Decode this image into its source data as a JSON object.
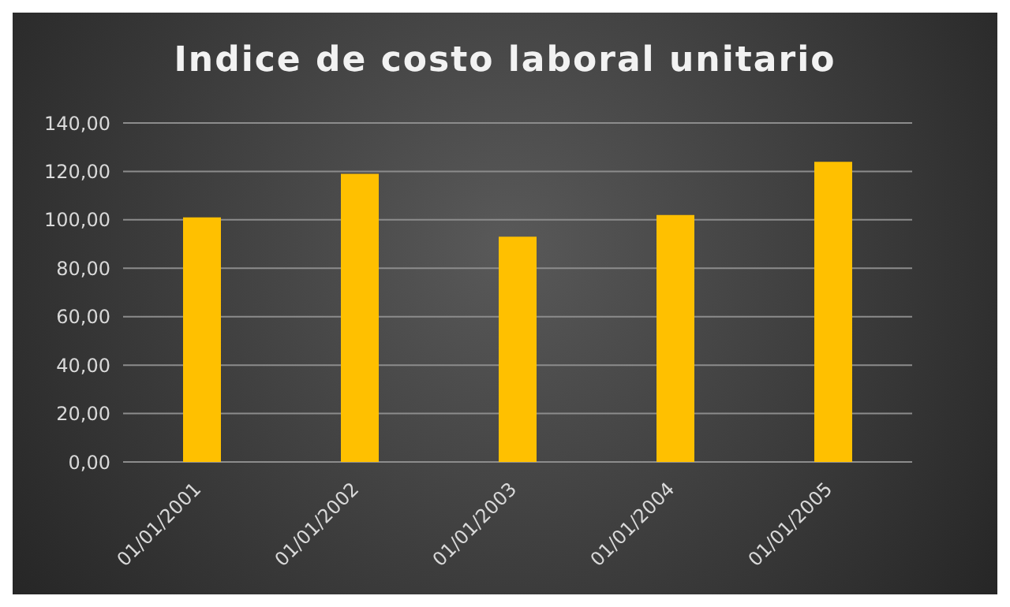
{
  "chart_data": {
    "type": "bar",
    "title": "Indice de costo laboral unitario",
    "categories": [
      "01/01/2001",
      "01/01/2002",
      "01/01/2003",
      "01/01/2004",
      "01/01/2005"
    ],
    "values": [
      101,
      119,
      93,
      102,
      124
    ],
    "color": "#ffc000",
    "ylim": [
      0,
      140
    ],
    "yticks": [
      {
        "value": 0,
        "label": "0,00"
      },
      {
        "value": 20,
        "label": "20,00"
      },
      {
        "value": 40,
        "label": "40,00"
      },
      {
        "value": 60,
        "label": "60,00"
      },
      {
        "value": 80,
        "label": "80,00"
      },
      {
        "value": 100,
        "label": "100,00"
      },
      {
        "value": 120,
        "label": "120,00"
      },
      {
        "value": 140,
        "label": "140,00"
      }
    ],
    "grid": "y",
    "legend": false
  }
}
